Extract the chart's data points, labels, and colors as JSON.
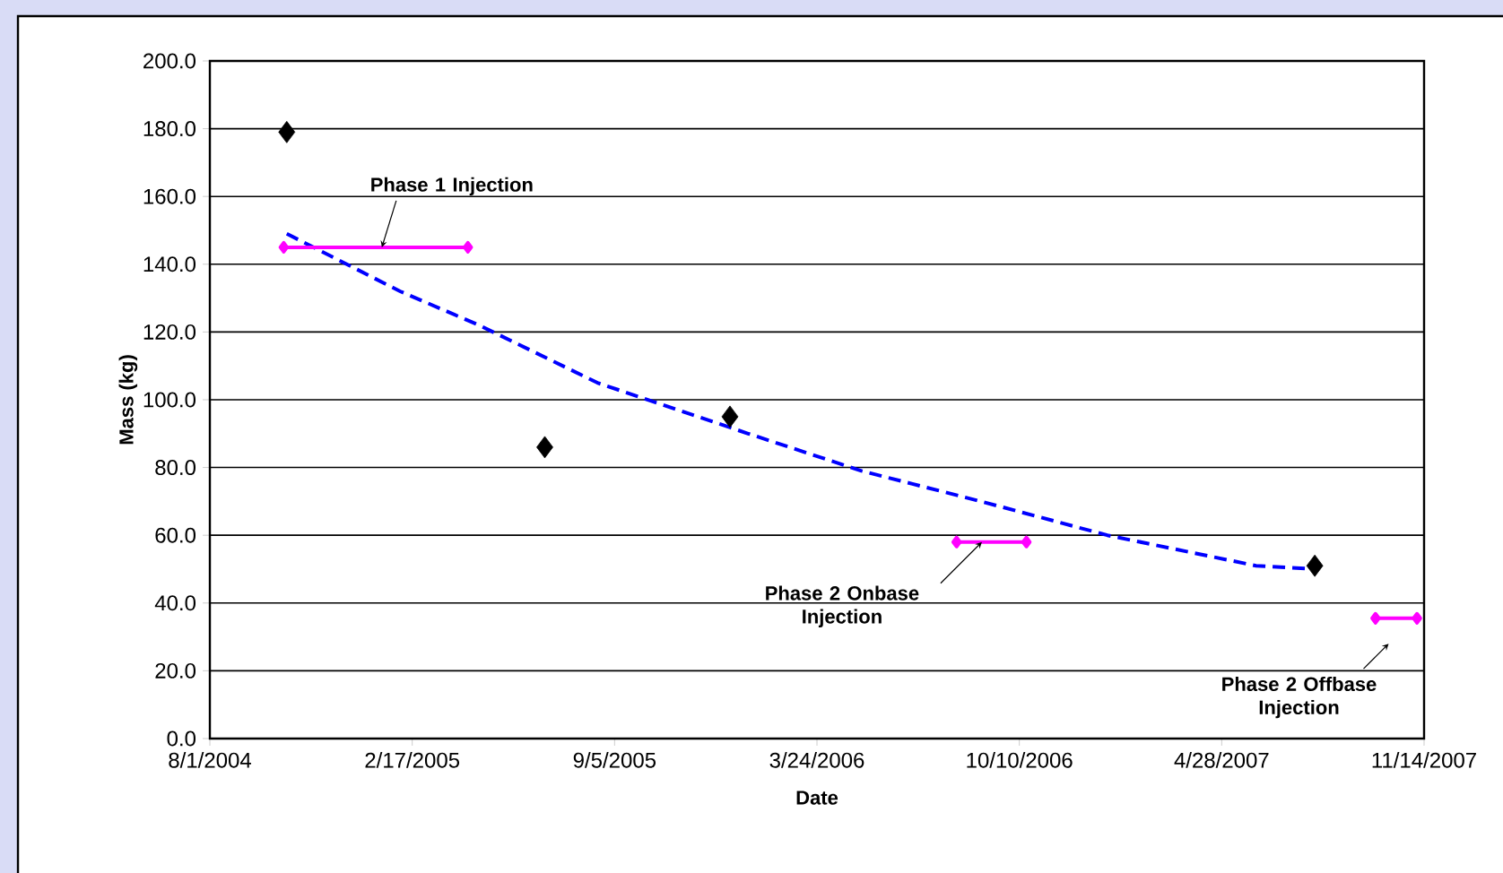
{
  "chart_data": {
    "type": "scatter",
    "xlabel": "Date",
    "ylabel": "Mass (kg)",
    "xlim": [
      "2004-08-01",
      "2007-11-14"
    ],
    "xticks": [
      {
        "value": "2004-08-01",
        "label": "8/1/2004"
      },
      {
        "value": "2005-02-17",
        "label": "2/17/2005"
      },
      {
        "value": "2005-09-05",
        "label": "9/5/2005"
      },
      {
        "value": "2006-03-24",
        "label": "3/24/2006"
      },
      {
        "value": "2006-10-10",
        "label": "10/10/2006"
      },
      {
        "value": "2007-04-28",
        "label": "4/28/2007"
      },
      {
        "value": "2007-11-14",
        "label": "11/14/2007"
      }
    ],
    "ylim": [
      0,
      200
    ],
    "yticks": [
      {
        "value": 0,
        "label": "0.0"
      },
      {
        "value": 20,
        "label": "20.0"
      },
      {
        "value": 40,
        "label": "40.0"
      },
      {
        "value": 60,
        "label": "60.0"
      },
      {
        "value": 80,
        "label": "80.0"
      },
      {
        "value": 100,
        "label": "100.0"
      },
      {
        "value": 120,
        "label": "120.0"
      },
      {
        "value": 140,
        "label": "140.0"
      },
      {
        "value": 160,
        "label": "160.0"
      },
      {
        "value": 180,
        "label": "180.0"
      },
      {
        "value": 200,
        "label": "200.0"
      }
    ],
    "grid": "y",
    "series": [
      {
        "color": "#000000",
        "marker": "diamond",
        "x": [
          "2004-10-16",
          "2005-06-28",
          "2005-12-28",
          "2007-07-29"
        ],
        "values": [
          179,
          86,
          95,
          51
        ]
      },
      {
        "type": "line",
        "color": "#0000ff",
        "line_style": "dashed",
        "marker": "none",
        "x": [
          "2004-10-16",
          "2005-02-05",
          "2005-04-24",
          "2005-08-19",
          "2006-01-15",
          "2006-05-07",
          "2006-09-02",
          "2007-01-05",
          "2007-06-01",
          "2007-07-29"
        ],
        "values": [
          149,
          132,
          122,
          105,
          90,
          79,
          70,
          60,
          51,
          50
        ]
      },
      {
        "type": "line",
        "color": "#ff00ff",
        "marker": "diamond",
        "x": [
          "2004-10-13",
          "2005-04-13"
        ],
        "values": [
          145,
          145
        ]
      },
      {
        "type": "line",
        "color": "#ff00ff",
        "marker": "diamond",
        "x": [
          "2006-08-09",
          "2006-10-17"
        ],
        "values": [
          58,
          58
        ]
      },
      {
        "type": "line",
        "color": "#ff00ff",
        "marker": "diamond",
        "x": [
          "2007-09-27",
          "2007-11-07"
        ],
        "values": [
          35.5,
          35.5
        ]
      }
    ],
    "annotations": [
      {
        "text": "Phase 1 Injection",
        "x": "2005-01-18",
        "y": 145
      },
      {
        "text": "Phase 2 Onbase Injection",
        "x": "2006-09-03",
        "y": 58
      },
      {
        "text": "Phase 2 Offbase Injection",
        "x": "2007-10-10",
        "y": 28
      }
    ]
  }
}
